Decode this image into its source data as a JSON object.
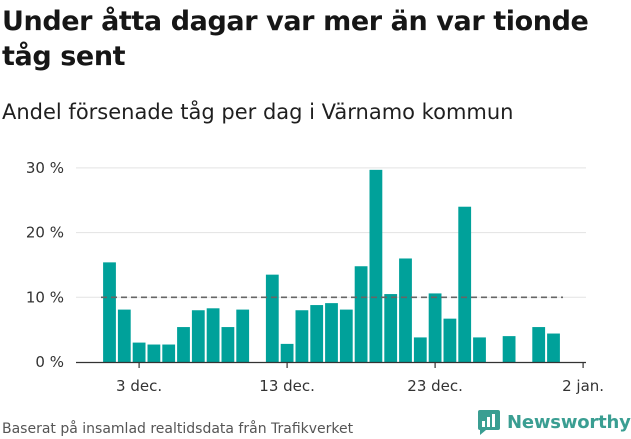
{
  "title": "Under åtta dagar var mer än var tionde tåg sent",
  "subtitle": "Andel försenade tåg per dag i Värnamo kommun",
  "source": "Baserat på insamlad realtidsdata från Trafikverket",
  "brand": {
    "name": "Newsworthy",
    "icon": "newsworthy-logo-icon",
    "color": "#3a9e92"
  },
  "colors": {
    "bar": "#00a19a",
    "reference": "#666666",
    "grid": "#e3e3e3",
    "axis": "#333333"
  },
  "chart_data": {
    "type": "bar",
    "x": [
      "1 dec.",
      "2 dec.",
      "3 dec.",
      "4 dec.",
      "5 dec.",
      "6 dec.",
      "7 dec.",
      "8 dec.",
      "9 dec.",
      "10 dec.",
      "11 dec.",
      "12 dec.",
      "13 dec.",
      "14 dec.",
      "15 dec.",
      "16 dec.",
      "17 dec.",
      "18 dec.",
      "19 dec.",
      "20 dec.",
      "21 dec.",
      "22 dec.",
      "23 dec.",
      "24 dec.",
      "25 dec.",
      "26 dec.",
      "27 dec.",
      "28 dec.",
      "29 dec.",
      "30 dec.",
      "31 dec."
    ],
    "values": [
      15.4,
      8.1,
      3.0,
      2.7,
      2.7,
      5.4,
      8.0,
      8.3,
      5.4,
      8.1,
      null,
      13.5,
      2.8,
      8.0,
      8.8,
      9.1,
      8.1,
      14.8,
      29.7,
      10.5,
      16.0,
      3.8,
      10.6,
      6.7,
      24.0,
      3.8,
      null,
      4.0,
      null,
      5.4,
      4.4
    ],
    "reference_line": 10,
    "y_ticks": [
      0,
      10,
      20,
      30
    ],
    "y_tick_labels": [
      "0 %",
      "10 %",
      "20 %",
      "30 %"
    ],
    "ylim": [
      0,
      30
    ],
    "x_ticks": [
      "3 dec.",
      "13 dec.",
      "23 dec.",
      "2 jan."
    ],
    "xlabel": "",
    "ylabel": "",
    "grid": true,
    "legend": "none"
  }
}
